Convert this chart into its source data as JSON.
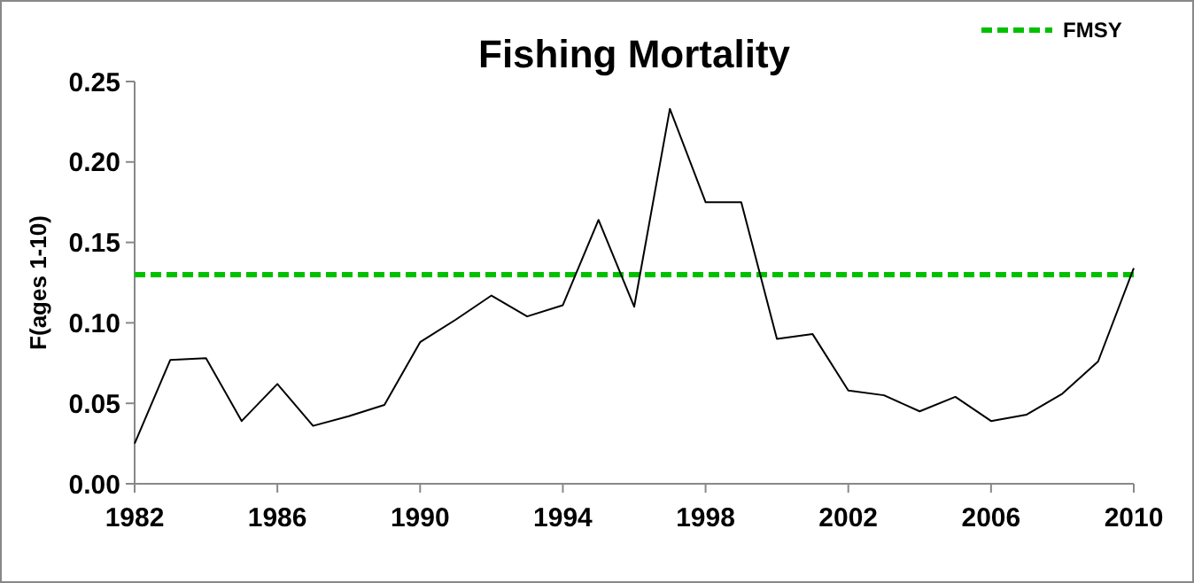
{
  "chart_data": {
    "type": "line",
    "title": "Fishing Mortality",
    "ylabel": "F(ages 1-10)",
    "x": [
      1982,
      1983,
      1984,
      1985,
      1986,
      1987,
      1988,
      1989,
      1990,
      1991,
      1992,
      1993,
      1994,
      1995,
      1996,
      1997,
      1998,
      1999,
      2000,
      2001,
      2002,
      2003,
      2004,
      2005,
      2006,
      2007,
      2008,
      2009,
      2010
    ],
    "series": [
      {
        "color": "#000000",
        "values": [
          0.025,
          0.077,
          0.078,
          0.039,
          0.062,
          0.036,
          0.042,
          0.049,
          0.088,
          0.102,
          0.117,
          0.104,
          0.111,
          0.164,
          0.11,
          0.233,
          0.175,
          0.175,
          0.09,
          0.093,
          0.058,
          0.055,
          0.045,
          0.054,
          0.039,
          0.043,
          0.056,
          0.076,
          0.134
        ]
      }
    ],
    "xlim": [
      1982,
      2010
    ],
    "xticks": [
      1982,
      1986,
      1990,
      1994,
      1998,
      2002,
      2006,
      2010
    ],
    "ylim": [
      0,
      0.25
    ],
    "yticks": [
      {
        "value": 0,
        "label": "0.00"
      },
      {
        "value": 0.05,
        "label": "0.05"
      },
      {
        "value": 0.1,
        "label": "0.10"
      },
      {
        "value": 0.15,
        "label": "0.15"
      },
      {
        "value": 0.2,
        "label": "0.20"
      },
      {
        "value": 0.25,
        "label": "0.25"
      }
    ],
    "ref_lines": [
      {
        "axis": "y",
        "value": 0.13,
        "label": "FMSY",
        "color": "#00c000",
        "line_style": "dashed"
      }
    ],
    "legend": "top right",
    "grid": false,
    "marker": "none",
    "line_style": "solid"
  }
}
